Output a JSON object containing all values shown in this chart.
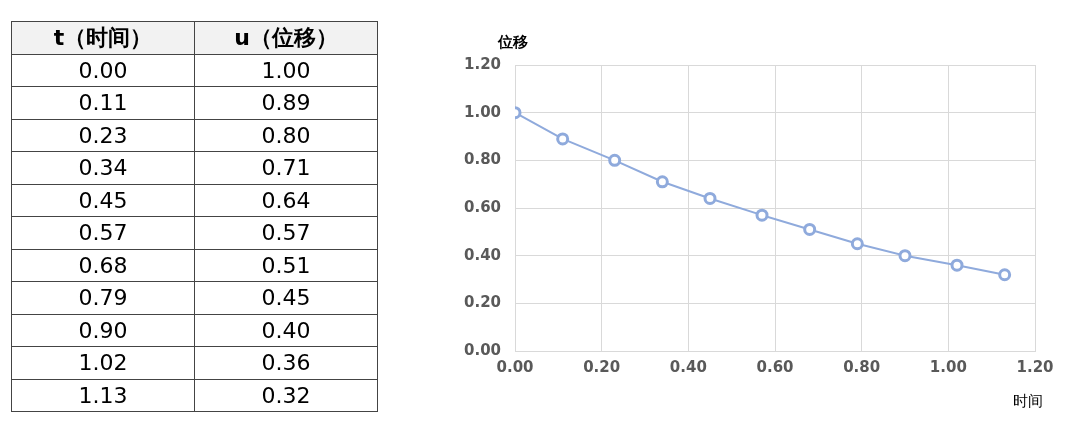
{
  "chart_data": [
    {
      "type": "other",
      "annotations": [
        "t（时间）",
        "u（位移）",
        "0.00",
        "1.00",
        "0.11",
        "0.89",
        "0.23",
        "0.80",
        "0.34",
        "0.71",
        "0.45",
        "0.64",
        "0.57",
        "0.57",
        "0.68",
        "0.51",
        "0.79",
        "0.45",
        "0.90",
        "0.40",
        "1.02",
        "0.36",
        "1.13",
        "0.32"
      ]
    },
    {
      "type": "line",
      "xlabel": "时间",
      "ylabel": "位移",
      "x": [
        0.0,
        0.11,
        0.23,
        0.34,
        0.45,
        0.57,
        0.68,
        0.79,
        0.9,
        1.02,
        1.13
      ],
      "series": [
        {
          "color": "#8faadc",
          "values": [
            1.0,
            0.89,
            0.8,
            0.71,
            0.64,
            0.57,
            0.51,
            0.45,
            0.4,
            0.36,
            0.32
          ]
        }
      ],
      "xlim": [
        0,
        1.2
      ],
      "xticks": [
        {
          "value": 0,
          "label": "0.00"
        },
        {
          "value": 0.2,
          "label": "0.20"
        },
        {
          "value": 0.4,
          "label": "0.40"
        },
        {
          "value": 0.6,
          "label": "0.60"
        },
        {
          "value": 0.8,
          "label": "0.80"
        },
        {
          "value": 1,
          "label": "1.00"
        },
        {
          "value": 1.2,
          "label": "1.20"
        }
      ],
      "ylim": [
        0,
        1.2
      ],
      "yticks": [
        {
          "value": 0,
          "label": "0.00"
        },
        {
          "value": 0.2,
          "label": "0.20"
        },
        {
          "value": 0.4,
          "label": "0.40"
        },
        {
          "value": 0.6,
          "label": "0.60"
        },
        {
          "value": 0.8,
          "label": "0.80"
        },
        {
          "value": 1,
          "label": "1.00"
        },
        {
          "value": 1.2,
          "label": "1.20"
        }
      ],
      "grid": true,
      "marker": "circle",
      "line_style": "solid"
    }
  ]
}
